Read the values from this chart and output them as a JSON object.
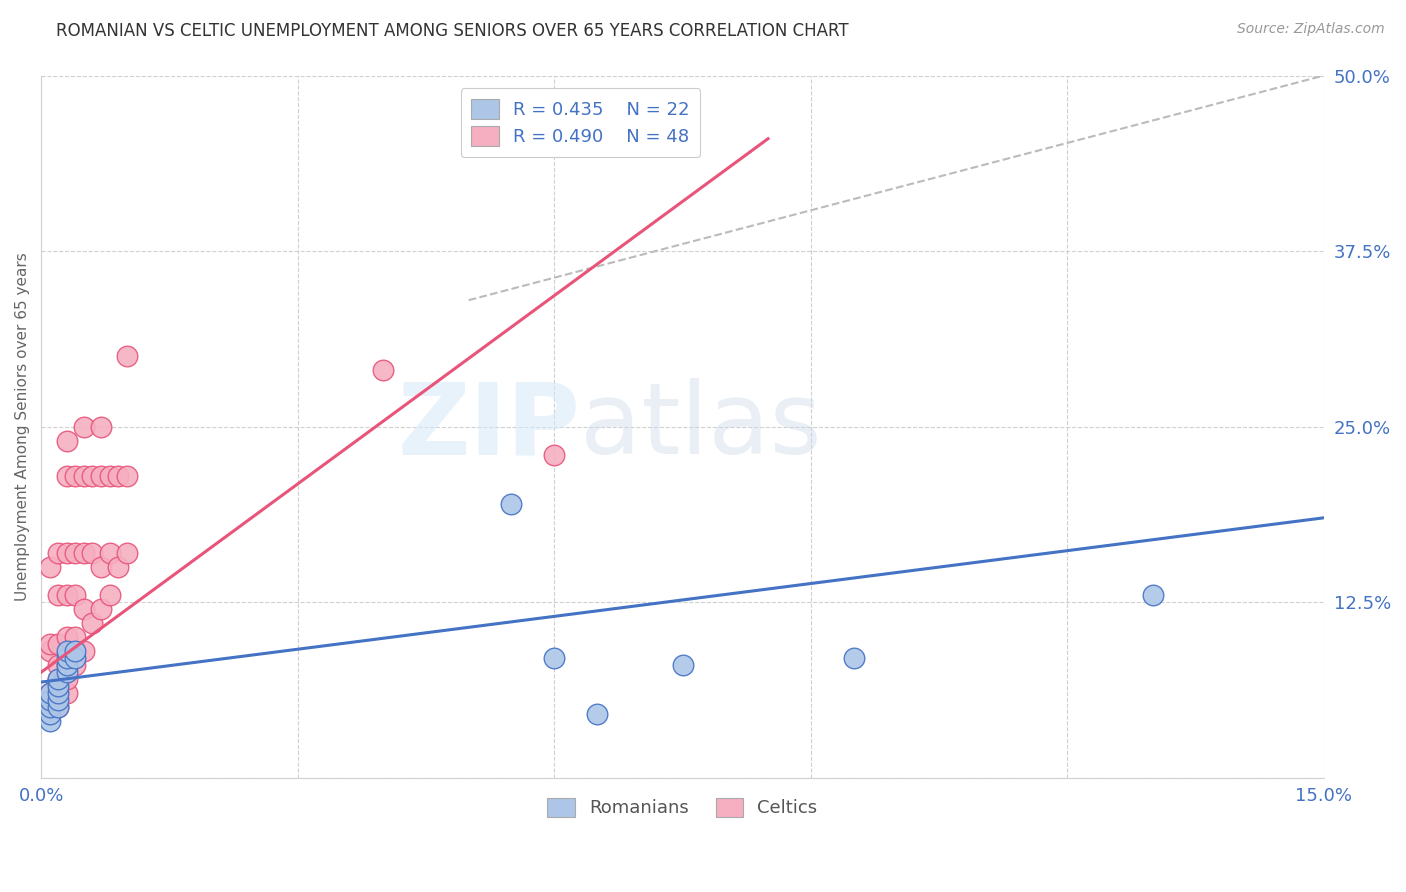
{
  "title": "ROMANIAN VS CELTIC UNEMPLOYMENT AMONG SENIORS OVER 65 YEARS CORRELATION CHART",
  "source": "Source: ZipAtlas.com",
  "ylabel_left": "Unemployment Among Seniors over 65 years",
  "xlim": [
    0.0,
    0.15
  ],
  "ylim": [
    0.0,
    0.5
  ],
  "xticks": [
    0.0,
    0.03,
    0.06,
    0.09,
    0.12,
    0.15
  ],
  "xticklabels": [
    "0.0%",
    "",
    "",
    "",
    "",
    "15.0%"
  ],
  "yticks_right": [
    0.0,
    0.125,
    0.25,
    0.375,
    0.5
  ],
  "yticklabels_right": [
    "",
    "12.5%",
    "25.0%",
    "37.5%",
    "50.0%"
  ],
  "legend_R_romanian": "R = 0.435",
  "legend_N_romanian": "N = 22",
  "legend_R_celtic": "R = 0.490",
  "legend_N_celtic": "N = 48",
  "legend_label_romanian": "Romanians",
  "legend_label_celtic": "Celtics",
  "color_romanian": "#adc6e8",
  "color_celtic": "#f5afc0",
  "color_line_romanian": "#4472c4",
  "color_line_celtic": "#e8547a",
  "color_legend_text": "#4472c4",
  "color_title": "#333333",
  "watermark_line1": "ZIP",
  "watermark_line2": "atlas",
  "background_color": "#ffffff",
  "grid_color": "#d0d0d0",
  "romanian_x": [
    0.001,
    0.001,
    0.001,
    0.001,
    0.001,
    0.002,
    0.002,
    0.002,
    0.002,
    0.002,
    0.003,
    0.003,
    0.003,
    0.003,
    0.004,
    0.004,
    0.055,
    0.06,
    0.065,
    0.075,
    0.095,
    0.13
  ],
  "romanian_y": [
    0.04,
    0.045,
    0.05,
    0.055,
    0.06,
    0.05,
    0.055,
    0.06,
    0.065,
    0.07,
    0.075,
    0.08,
    0.085,
    0.09,
    0.085,
    0.09,
    0.195,
    0.085,
    0.045,
    0.08,
    0.085,
    0.13
  ],
  "celtic_x": [
    0.001,
    0.001,
    0.001,
    0.001,
    0.001,
    0.001,
    0.002,
    0.002,
    0.002,
    0.002,
    0.002,
    0.002,
    0.002,
    0.003,
    0.003,
    0.003,
    0.003,
    0.003,
    0.003,
    0.003,
    0.003,
    0.004,
    0.004,
    0.004,
    0.004,
    0.004,
    0.005,
    0.005,
    0.005,
    0.005,
    0.005,
    0.006,
    0.006,
    0.006,
    0.007,
    0.007,
    0.007,
    0.007,
    0.008,
    0.008,
    0.008,
    0.009,
    0.009,
    0.01,
    0.01,
    0.01,
    0.04,
    0.06
  ],
  "celtic_y": [
    0.045,
    0.055,
    0.06,
    0.09,
    0.095,
    0.15,
    0.05,
    0.06,
    0.07,
    0.08,
    0.095,
    0.13,
    0.16,
    0.06,
    0.07,
    0.08,
    0.1,
    0.13,
    0.16,
    0.215,
    0.24,
    0.08,
    0.1,
    0.13,
    0.16,
    0.215,
    0.09,
    0.12,
    0.16,
    0.215,
    0.25,
    0.11,
    0.16,
    0.215,
    0.12,
    0.15,
    0.215,
    0.25,
    0.13,
    0.16,
    0.215,
    0.15,
    0.215,
    0.16,
    0.215,
    0.3,
    0.29,
    0.23
  ],
  "celtic_line_x": [
    0.0,
    0.085
  ],
  "celtic_line_y": [
    0.075,
    0.455
  ],
  "romanian_line_x": [
    0.0,
    0.15
  ],
  "romanian_line_y": [
    0.068,
    0.185
  ],
  "ref_line_x": [
    0.05,
    0.15
  ],
  "ref_line_y": [
    0.34,
    0.5
  ]
}
